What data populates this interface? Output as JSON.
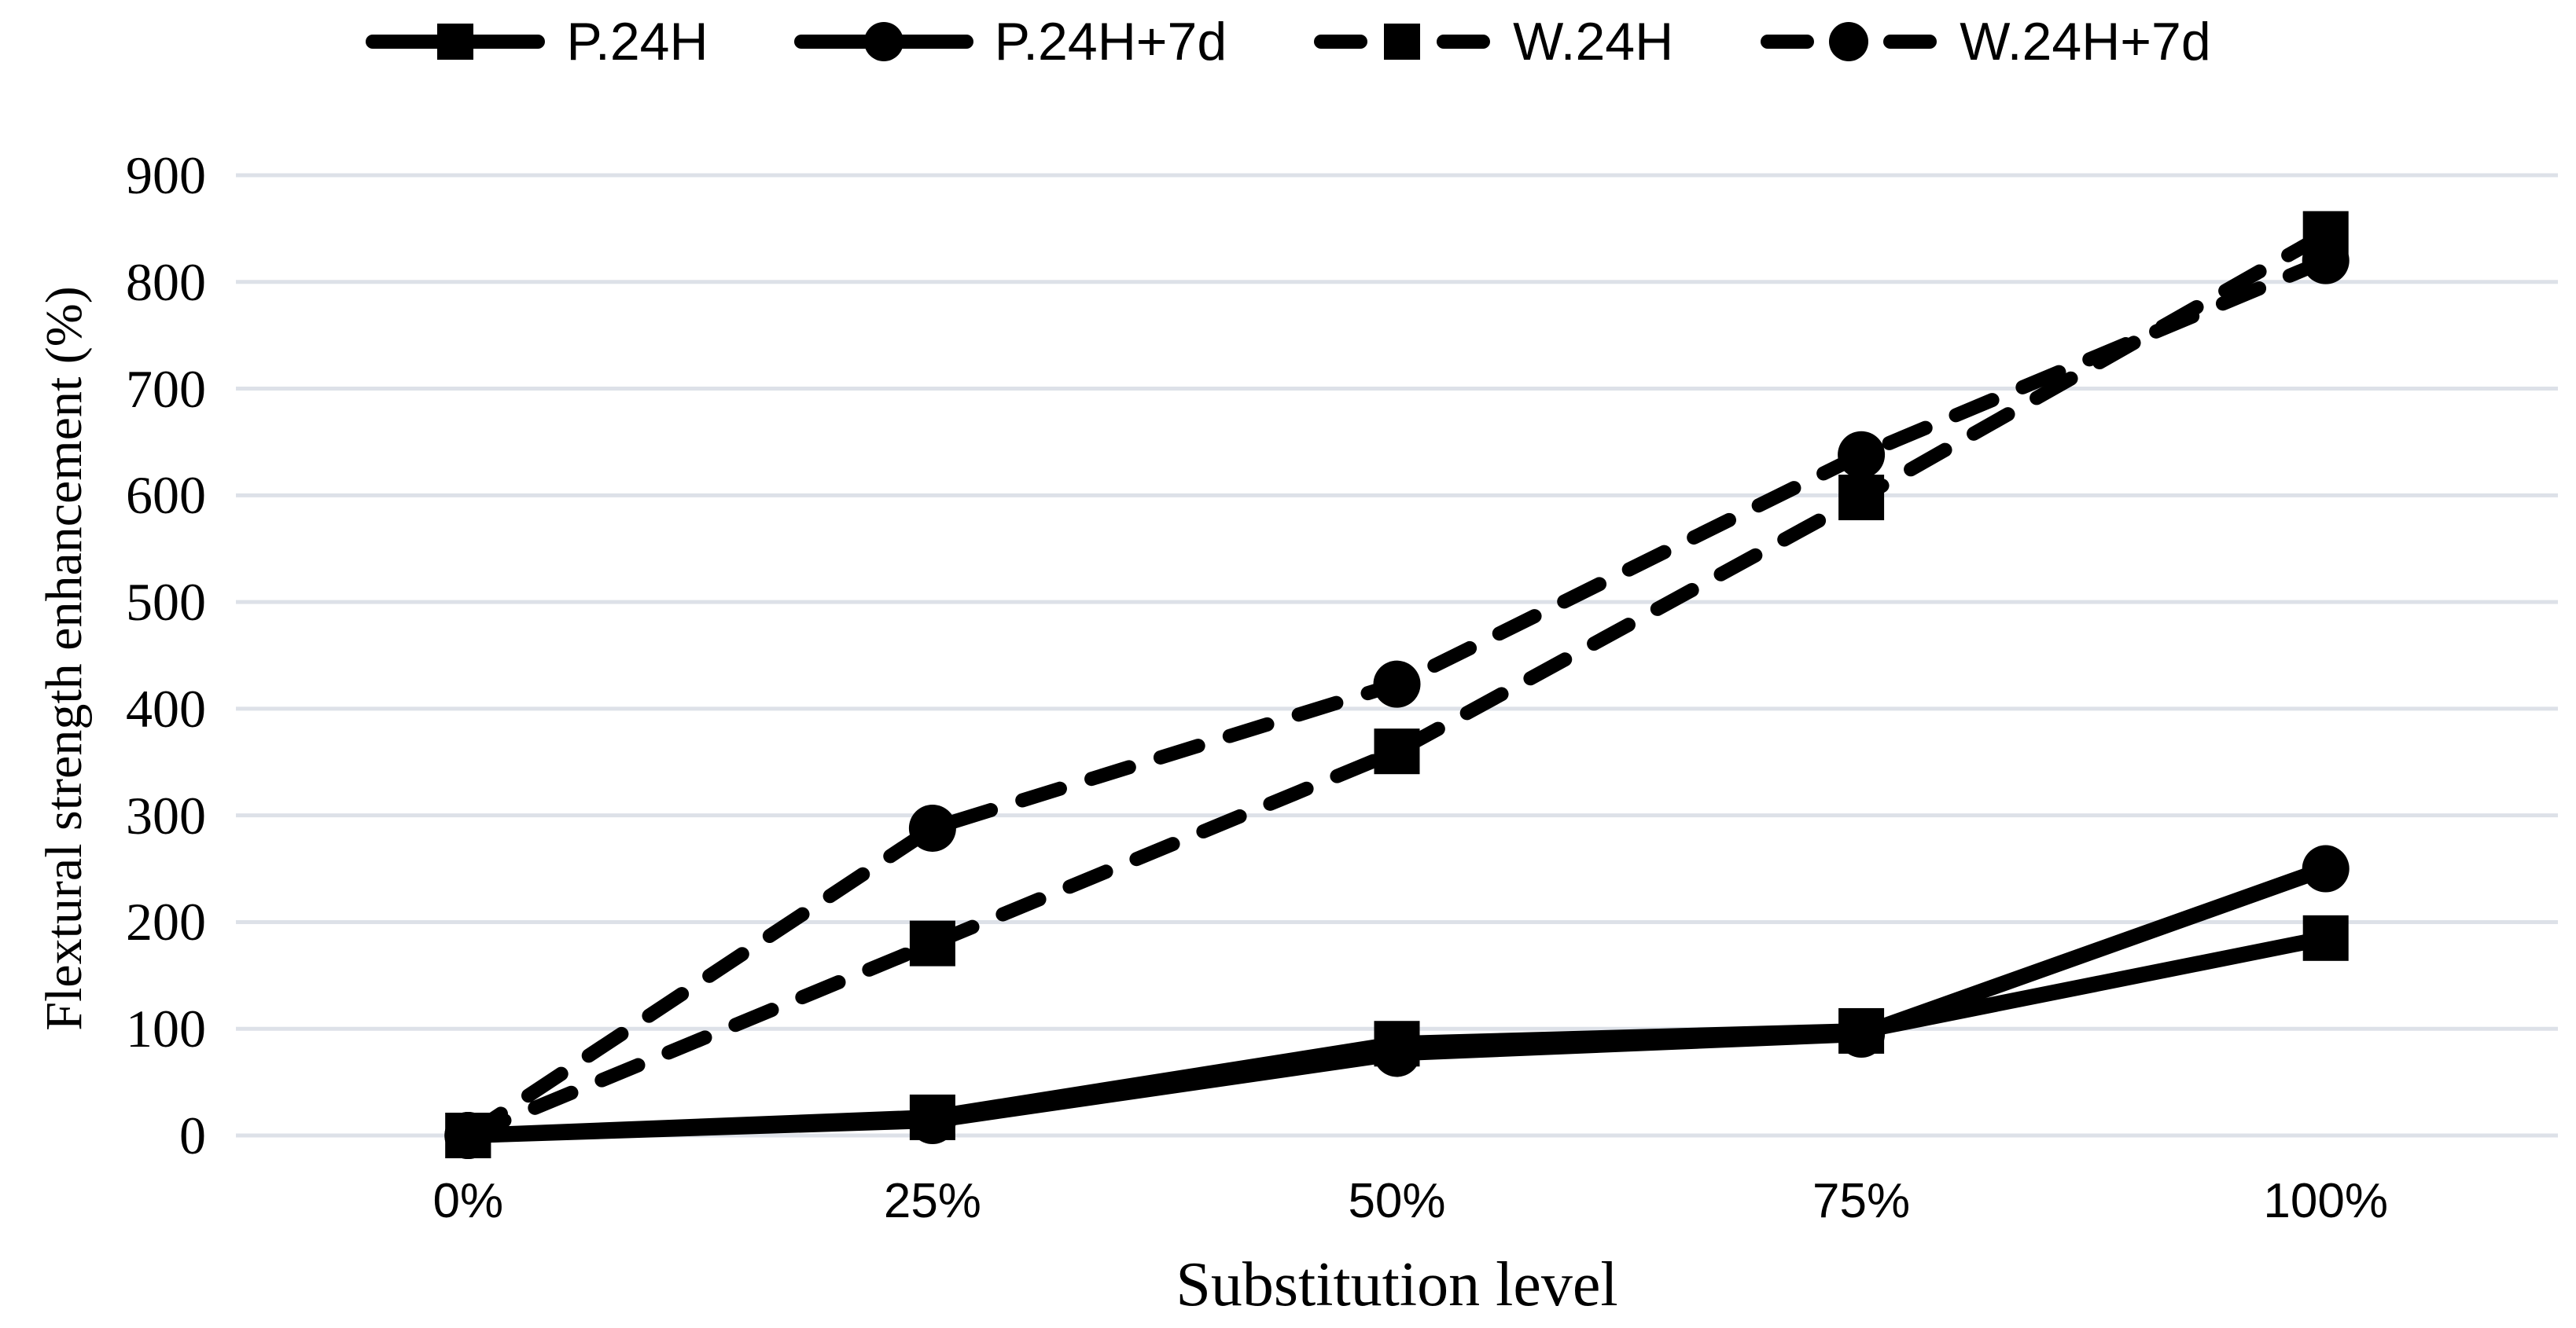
{
  "figure": {
    "background": "#ffffff"
  },
  "chart_data": {
    "type": "line",
    "title": "",
    "xlabel": "Substitution level",
    "ylabel": "Flextural strength enhancement (%)",
    "categories": [
      "0%",
      "25%",
      "50%",
      "75%",
      "100%"
    ],
    "ylim": [
      0,
      900
    ],
    "yticks": [
      0,
      100,
      200,
      300,
      400,
      500,
      600,
      700,
      800,
      900
    ],
    "grid": "horizontal-only",
    "legend_position": "top-center",
    "colors": {
      "series": "#000000",
      "gridline": "#dde1e8",
      "text": "#000000"
    },
    "series": [
      {
        "name": "P.24H",
        "line": "solid",
        "marker": "square",
        "values": [
          0,
          17,
          86,
          98,
          185
        ]
      },
      {
        "name": "P.24H+7d",
        "line": "solid",
        "marker": "circle",
        "values": [
          0,
          14,
          77,
          95,
          250
        ]
      },
      {
        "name": "W.24H",
        "line": "dashed",
        "marker": "square",
        "values": [
          0,
          180,
          360,
          598,
          845
        ]
      },
      {
        "name": "W.24H+7d",
        "line": "dashed",
        "marker": "circle",
        "values": [
          0,
          288,
          423,
          638,
          820
        ]
      }
    ]
  }
}
